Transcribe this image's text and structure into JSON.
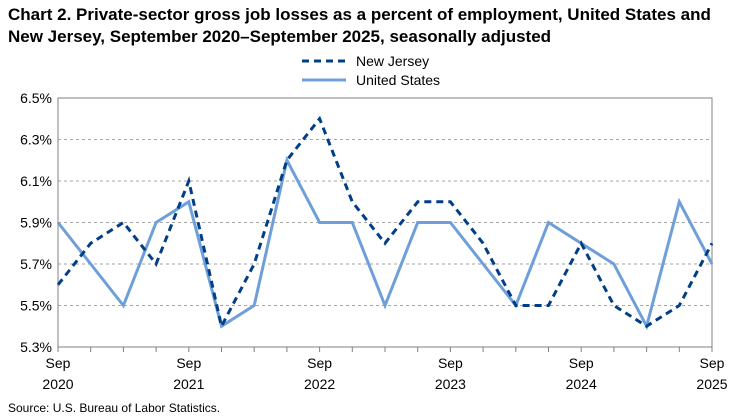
{
  "chart_data": {
    "type": "line",
    "title": "Chart 2. Private-sector gross job losses as a percent of employment, United States and New Jersey, September 2020–September 2025, seasonally adjusted",
    "source": "Source: U.S. Bureau of Labor Statistics.",
    "x_tick_labels": [
      {
        "month": "Sep",
        "year": "2020"
      },
      {
        "month": "Sep",
        "year": "2021"
      },
      {
        "month": "Sep",
        "year": "2022"
      },
      {
        "month": "Sep",
        "year": "2023"
      },
      {
        "month": "Sep",
        "year": "2024"
      },
      {
        "month": "Sep",
        "year": "2025"
      }
    ],
    "categories": [
      "Sep 2020",
      "Dec 2020",
      "Mar 2021",
      "Jun 2021",
      "Sep 2021",
      "Dec 2021",
      "Mar 2022",
      "Jun 2022",
      "Sep 2022",
      "Dec 2022",
      "Mar 2023",
      "Jun 2023",
      "Sep 2023",
      "Dec 2023",
      "Mar 2024",
      "Jun 2024",
      "Sep 2024",
      "Dec 2024",
      "Mar 2025",
      "Jun 2025",
      "Sep 2025"
    ],
    "y_ticks": [
      "5.3%",
      "5.5%",
      "5.7%",
      "5.9%",
      "6.1%",
      "6.3%",
      "6.5%"
    ],
    "ylim": [
      5.3,
      6.5
    ],
    "grid": true,
    "legend_position": "top",
    "series": [
      {
        "name": "New Jersey",
        "color": "#003f87",
        "style": "dashed",
        "values": [
          5.6,
          5.8,
          5.9,
          5.7,
          6.1,
          5.4,
          5.7,
          6.2,
          6.4,
          6.0,
          5.8,
          6.0,
          6.0,
          5.8,
          5.5,
          5.5,
          5.8,
          5.5,
          5.4,
          5.5,
          5.8
        ]
      },
      {
        "name": "United States",
        "color": "#6f9fd8",
        "style": "solid",
        "values": [
          5.9,
          5.7,
          5.5,
          5.9,
          6.0,
          5.4,
          5.5,
          6.2,
          5.9,
          5.9,
          5.5,
          5.9,
          5.9,
          5.7,
          5.5,
          5.9,
          5.8,
          5.7,
          5.4,
          6.0,
          5.7
        ]
      }
    ]
  }
}
